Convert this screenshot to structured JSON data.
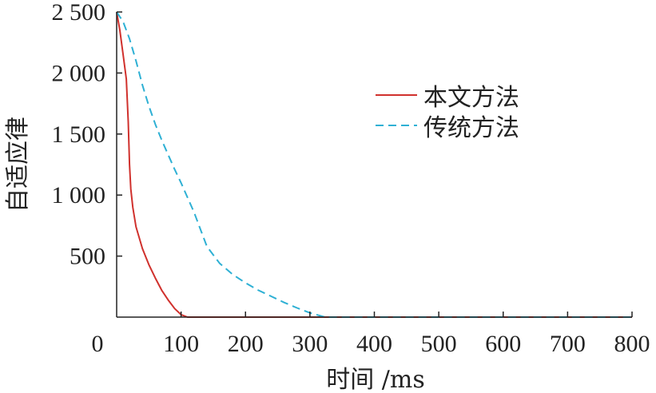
{
  "chart_data": {
    "type": "line",
    "xlabel": "时间 /ms",
    "ylabel": "自适应律",
    "xlim": [
      0,
      800
    ],
    "ylim": [
      0,
      2500
    ],
    "x_ticks": [
      0,
      100,
      200,
      300,
      400,
      500,
      600,
      700,
      800
    ],
    "x_tick_labels": [
      "0",
      "100",
      "200",
      "300",
      "400",
      "500",
      "600",
      "700",
      "800"
    ],
    "y_ticks": [
      500,
      1000,
      1500,
      2000,
      2500
    ],
    "y_tick_labels": [
      "500",
      "1 000",
      "1 500",
      "2 000",
      "2 500"
    ],
    "grid": false,
    "legend_position": "right",
    "series": [
      {
        "name": "本文方法",
        "color": "#d0312d",
        "dash": "solid",
        "x": [
          0,
          5,
          10,
          15,
          18,
          20,
          22,
          25,
          30,
          40,
          50,
          60,
          70,
          80,
          90,
          100,
          110,
          130,
          160,
          200,
          300,
          400,
          500,
          600,
          700,
          800
        ],
        "y": [
          2500,
          2350,
          2150,
          1950,
          1600,
          1250,
          1050,
          900,
          740,
          560,
          430,
          320,
          220,
          140,
          70,
          20,
          0,
          0,
          0,
          0,
          0,
          0,
          0,
          0,
          0,
          0
        ]
      },
      {
        "name": "传统方法",
        "color": "#2eb0d4",
        "dash": "dashed",
        "x": [
          0,
          10,
          20,
          30,
          40,
          50,
          60,
          70,
          80,
          90,
          100,
          110,
          120,
          130,
          140,
          150,
          160,
          180,
          200,
          220,
          240,
          260,
          280,
          300,
          320,
          330,
          400,
          500,
          600,
          700,
          800
        ],
        "y": [
          2500,
          2420,
          2280,
          2100,
          1900,
          1730,
          1580,
          1450,
          1330,
          1210,
          1100,
          980,
          860,
          720,
          580,
          510,
          440,
          350,
          280,
          220,
          170,
          120,
          75,
          35,
          5,
          0,
          0,
          0,
          0,
          0,
          0
        ]
      }
    ]
  }
}
